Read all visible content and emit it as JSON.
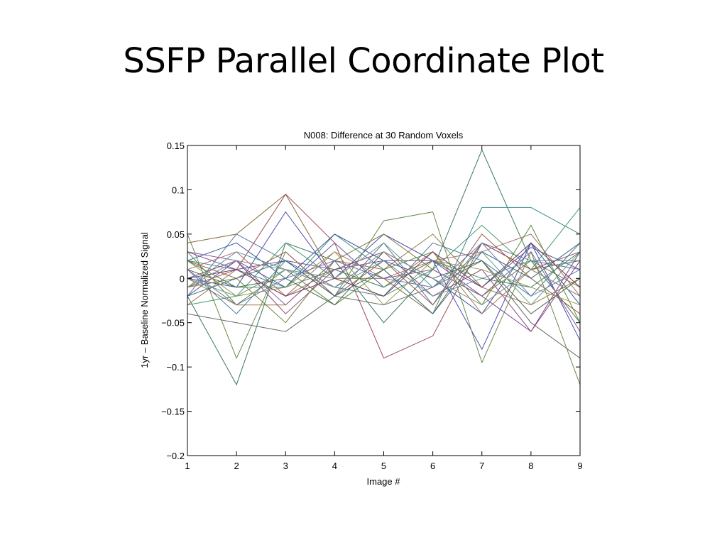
{
  "slide": {
    "title": "SSFP Parallel Coordinate Plot"
  },
  "chart_data": {
    "type": "line",
    "title": "N008: Difference at 30 Random Voxels",
    "xlabel": "Image #",
    "ylabel": "1yr – Baseline Normalized Signal",
    "x": [
      1,
      2,
      3,
      4,
      5,
      6,
      7,
      8,
      9
    ],
    "xlim": [
      1,
      9
    ],
    "ylim": [
      -0.2,
      0.15
    ],
    "xticks": [
      1,
      2,
      3,
      4,
      5,
      6,
      7,
      8,
      9
    ],
    "xtick_labels": [
      "1",
      "2",
      "3",
      "4",
      "5",
      "6",
      "7",
      "8",
      "9"
    ],
    "yticks": [
      -0.2,
      -0.15,
      -0.1,
      -0.05,
      0,
      0.05,
      0.1,
      0.15
    ],
    "ytick_labels": [
      "−0.2",
      "−0.15",
      "−0.1",
      "−0.05",
      "0",
      "0.05",
      "0.1",
      "0.15"
    ],
    "grid": false,
    "legend": "none",
    "series": [
      {
        "color": "#3a7a5a",
        "values": [
          -0.02,
          -0.12,
          0.04,
          0.02,
          -0.05,
          0.01,
          0.145,
          0.02,
          -0.05
        ]
      },
      {
        "color": "#8a6a3a",
        "values": [
          0.04,
          0.05,
          0.095,
          0.0,
          0.0,
          -0.04,
          0.04,
          0.01,
          0.02
        ]
      },
      {
        "color": "#4a4ab0",
        "values": [
          0.0,
          -0.01,
          0.075,
          0.0,
          0.05,
          0.02,
          -0.08,
          0.04,
          -0.07
        ]
      },
      {
        "color": "#a04a5a",
        "values": [
          -0.01,
          0.01,
          0.095,
          0.04,
          -0.09,
          -0.065,
          0.04,
          0.01,
          0.03
        ]
      },
      {
        "color": "#6a8a4a",
        "values": [
          0.05,
          -0.09,
          0.03,
          -0.02,
          0.065,
          0.075,
          -0.095,
          0.03,
          -0.12
        ]
      },
      {
        "color": "#3a8a8a",
        "values": [
          0.02,
          0.01,
          -0.01,
          0.05,
          0.01,
          -0.04,
          0.08,
          0.08,
          0.05
        ]
      },
      {
        "color": "#7a4a9a",
        "values": [
          0.03,
          0.01,
          0.02,
          0.01,
          0.02,
          0.02,
          -0.02,
          -0.06,
          0.03
        ]
      },
      {
        "color": "#5a7aa0",
        "values": [
          -0.02,
          0.05,
          0.02,
          -0.02,
          0.04,
          -0.03,
          0.04,
          0.02,
          0.01
        ]
      },
      {
        "color": "#9a7a4a",
        "values": [
          0.0,
          -0.03,
          -0.03,
          0.02,
          0.01,
          0.05,
          -0.01,
          -0.03,
          0.0
        ]
      },
      {
        "color": "#4a9a6a",
        "values": [
          -0.03,
          -0.02,
          0.04,
          0.0,
          -0.02,
          0.01,
          0.06,
          0.01,
          0.08
        ]
      },
      {
        "color": "#b06a6a",
        "values": [
          0.01,
          0.03,
          -0.02,
          0.03,
          0.0,
          0.02,
          0.03,
          0.05,
          -0.02
        ]
      },
      {
        "color": "#6a6a6a",
        "values": [
          -0.04,
          -0.05,
          -0.06,
          -0.02,
          -0.03,
          -0.01,
          0.02,
          -0.05,
          -0.09
        ]
      },
      {
        "color": "#3a5a9a",
        "values": [
          0.02,
          0.04,
          0.0,
          0.05,
          0.02,
          0.0,
          -0.04,
          0.04,
          -0.03
        ]
      },
      {
        "color": "#8a4a7a",
        "values": [
          0.0,
          0.02,
          -0.04,
          0.01,
          0.03,
          -0.02,
          0.01,
          -0.06,
          0.02
        ]
      },
      {
        "color": "#5a8a3a",
        "values": [
          0.03,
          -0.03,
          0.01,
          -0.03,
          0.01,
          0.03,
          -0.03,
          0.06,
          -0.05
        ]
      },
      {
        "color": "#7a7a3a",
        "values": [
          -0.01,
          0.0,
          -0.05,
          0.02,
          0.05,
          0.01,
          -0.02,
          0.02,
          -0.01
        ]
      },
      {
        "color": "#4a7a9a",
        "values": [
          0.01,
          -0.04,
          0.02,
          -0.01,
          -0.02,
          0.04,
          0.02,
          -0.02,
          0.04
        ]
      },
      {
        "color": "#9a5a4a",
        "values": [
          0.02,
          0.0,
          0.03,
          -0.02,
          0.02,
          -0.03,
          0.05,
          0.0,
          -0.04
        ]
      },
      {
        "color": "#5a5aa0",
        "values": [
          -0.02,
          0.02,
          -0.01,
          0.04,
          -0.01,
          0.02,
          -0.01,
          0.035,
          0.01
        ]
      },
      {
        "color": "#6a9a8a",
        "values": [
          0.0,
          -0.02,
          0.01,
          0.0,
          0.04,
          -0.01,
          0.03,
          -0.03,
          0.03
        ]
      },
      {
        "color": "#a07a5a",
        "values": [
          -0.03,
          0.01,
          -0.02,
          0.01,
          -0.01,
          0.03,
          -0.04,
          0.01,
          -0.02
        ]
      },
      {
        "color": "#4a6a4a",
        "values": [
          0.01,
          -0.01,
          0.0,
          -0.03,
          0.03,
          0.0,
          0.02,
          -0.04,
          0.0
        ]
      },
      {
        "color": "#8a5a9a",
        "values": [
          0.03,
          0.02,
          -0.03,
          0.02,
          0.0,
          0.01,
          -0.02,
          0.03,
          -0.06
        ]
      },
      {
        "color": "#5a9aa0",
        "values": [
          -0.01,
          0.03,
          0.01,
          -0.01,
          0.02,
          -0.02,
          0.0,
          0.02,
          0.02
        ]
      },
      {
        "color": "#9a9a5a",
        "values": [
          0.02,
          -0.02,
          -0.01,
          0.03,
          -0.03,
          0.02,
          0.01,
          -0.01,
          -0.03
        ]
      },
      {
        "color": "#3a6a7a",
        "values": [
          -0.02,
          0.0,
          0.02,
          -0.02,
          0.01,
          -0.04,
          0.03,
          0.0,
          0.04
        ]
      },
      {
        "color": "#7a3a5a",
        "values": [
          0.0,
          0.01,
          -0.02,
          0.0,
          -0.02,
          0.03,
          -0.01,
          0.04,
          -0.01
        ]
      },
      {
        "color": "#6a7ab0",
        "values": [
          0.01,
          -0.03,
          0.0,
          0.02,
          0.0,
          -0.01,
          0.04,
          -0.02,
          0.01
        ]
      },
      {
        "color": "#8a8a8a",
        "values": [
          -0.01,
          0.02,
          0.01,
          -0.01,
          0.03,
          0.0,
          -0.03,
          0.01,
          -0.02
        ]
      },
      {
        "color": "#4a8a5a",
        "values": [
          0.02,
          -0.01,
          -0.01,
          0.01,
          -0.01,
          0.02,
          0.0,
          -0.01,
          0.03
        ]
      }
    ]
  }
}
